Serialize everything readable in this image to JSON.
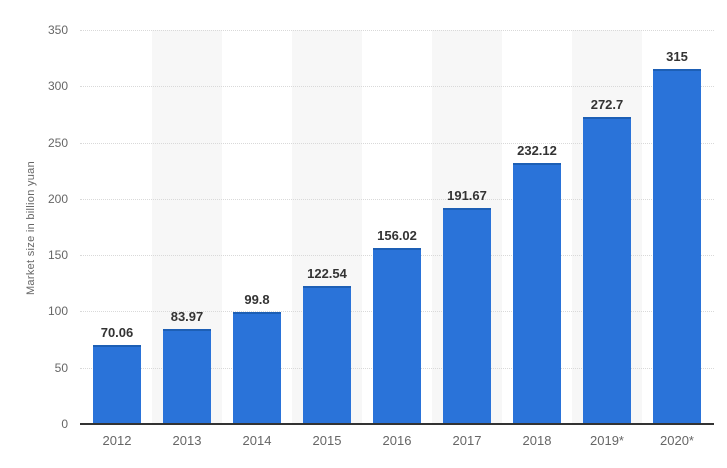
{
  "chart_data": {
    "type": "bar",
    "title": "",
    "xlabel": "",
    "ylabel": "Market size in billion yuan",
    "categories": [
      "2012",
      "2013",
      "2014",
      "2015",
      "2016",
      "2017",
      "2018",
      "2019*",
      "2020*"
    ],
    "values": [
      70.06,
      83.97,
      99.8,
      122.54,
      156.02,
      191.67,
      232.12,
      272.7,
      315
    ],
    "value_labels": [
      "70.06",
      "83.97",
      "99.8",
      "122.54",
      "156.02",
      "191.67",
      "232.12",
      "272.7",
      "315"
    ],
    "ylim": [
      0,
      350
    ],
    "ytick_step": 50,
    "yticks": [
      "0",
      "50",
      "100",
      "150",
      "200",
      "250",
      "300",
      "350"
    ],
    "grid": "horizontal-dotted",
    "legend": "none",
    "alternating_column_bands": [
      1,
      3,
      5,
      7
    ],
    "colors": {
      "bar": "#2a73d9",
      "bar_top_edge": "#1d5fb5",
      "plot_band": "#f7f7f7",
      "gridline": "#d9d9d9",
      "axis_line": "#333333",
      "tick_label": "#666666",
      "value_label": "#333333",
      "background": "#ffffff"
    }
  }
}
